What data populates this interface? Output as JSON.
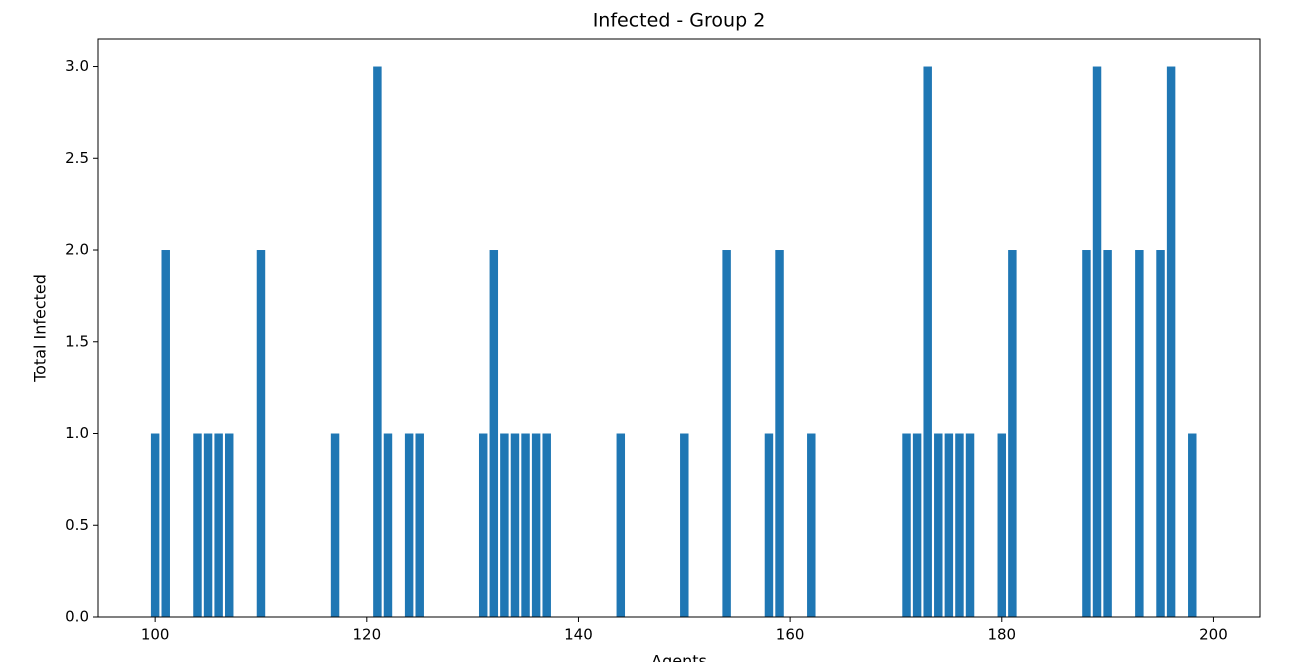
{
  "chart_data": {
    "type": "bar",
    "title": "Infected - Group 2",
    "x_label": "Agents",
    "y_label": "Total Infected",
    "x": [
      100,
      101,
      104,
      105,
      106,
      107,
      110,
      117,
      121,
      122,
      124,
      125,
      131,
      132,
      133,
      134,
      135,
      136,
      137,
      144,
      150,
      154,
      158,
      159,
      162,
      171,
      172,
      173,
      174,
      175,
      176,
      177,
      180,
      181,
      188,
      189,
      190,
      193,
      195,
      196,
      198
    ],
    "values": [
      1,
      2,
      1,
      1,
      1,
      1,
      2,
      1,
      3,
      1,
      1,
      1,
      1,
      2,
      1,
      1,
      1,
      1,
      1,
      1,
      1,
      2,
      1,
      2,
      1,
      1,
      1,
      3,
      1,
      1,
      1,
      1,
      1,
      2,
      2,
      3,
      2,
      2,
      2,
      3,
      1
    ],
    "color": "#1f77b4",
    "xlim": [
      94.6,
      204.4
    ],
    "xticks": [
      100,
      120,
      140,
      160,
      180,
      200
    ],
    "ylim": [
      0,
      3.15
    ],
    "yticks": [
      {
        "value": 0,
        "label": "0.0"
      },
      {
        "value": 0.5,
        "label": "0.5"
      },
      {
        "value": 1,
        "label": "1.0"
      },
      {
        "value": 1.5,
        "label": "1.5"
      },
      {
        "value": 2,
        "label": "2.0"
      },
      {
        "value": 2.5,
        "label": "2.5"
      },
      {
        "value": 3,
        "label": "3.0"
      }
    ]
  }
}
